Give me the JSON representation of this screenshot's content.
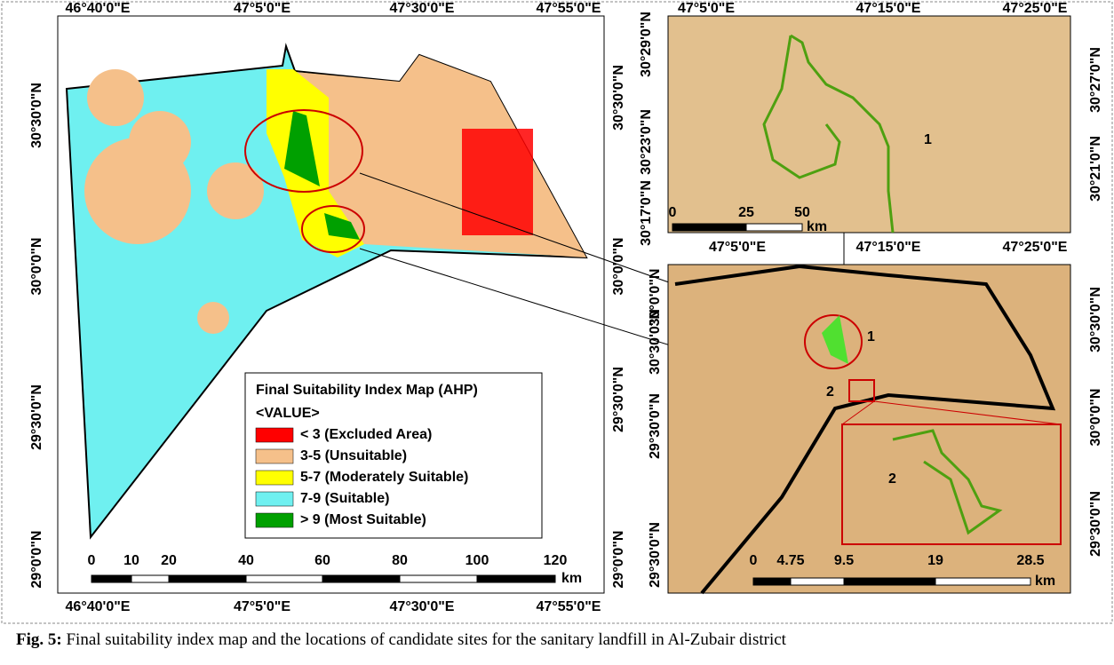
{
  "main_map": {
    "top_labels": [
      "46°40'0\"E",
      "47°5'0\"E",
      "47°30'0\"E",
      "47°55'0\"E"
    ],
    "bottom_labels": [
      "46°40'0\"E",
      "47°5'0\"E",
      "47°30'0\"E",
      "47°55'0\"E"
    ],
    "left_labels": [
      "30°30'0\"N",
      "30°0'0\"N",
      "29°30'0\"N",
      "29°0'0\"N"
    ],
    "right_labels": [
      "30°30'0\"N",
      "30°0'0\"N",
      "29°30'0\"N",
      "29°0'0\"N"
    ],
    "scale_labels": [
      "0",
      "10",
      "20",
      "40",
      "60",
      "80",
      "100",
      "120"
    ],
    "scale_unit": "km"
  },
  "legend": {
    "title": "Final Suitability Index Map (AHP)",
    "subtitle": "<VALUE>",
    "items": [
      {
        "label": "< 3 (Excluded Area)",
        "color": "#ff0000"
      },
      {
        "label": "3-5  (Unsuitable)",
        "color": "#f5c08a"
      },
      {
        "label": "5-7 (Moderately Suitable)",
        "color": "#ffff00"
      },
      {
        "label": "7-9 (Suitable)",
        "color": "#6ff0f0"
      },
      {
        "label": "> 9 (Most Suitable)",
        "color": "#00a000"
      }
    ]
  },
  "inset1": {
    "top_labels": [
      "47°5'0\"E",
      "47°15'0\"E",
      "47°25'0\"E"
    ],
    "bottom_labels": [
      "47°5'0\"E",
      "47°15'0\"E",
      "47°25'0\"E"
    ],
    "left_labels": [
      "30°29'0\"N",
      "30°23'0\"N",
      "30°17'0\"N"
    ],
    "right_labels": [
      "30°27'0\"N",
      "30°21'0\"N"
    ],
    "scale_labels": [
      "0",
      "25",
      "50"
    ],
    "scale_unit": "km",
    "site_label": "1"
  },
  "inset2": {
    "left_labels": [
      "30°0'0\"N",
      "30°30'0\"N",
      "29°30'0\"N",
      "29°30'0\"N"
    ],
    "right_labels": [
      "30°30'0\"N",
      "30°0'0\"N",
      "29°30'0\"N"
    ],
    "scale_labels": [
      "0",
      "4.75",
      "9.5",
      "19",
      "28.5"
    ],
    "scale_unit": "km",
    "site1_label": "1",
    "site2_label": "2",
    "zoom_label": "2"
  },
  "caption": {
    "label": "Fig. 5:",
    "text": "Final suitability index map and the locations of candidate sites for the sanitary landfill in Al-Zubair district"
  }
}
